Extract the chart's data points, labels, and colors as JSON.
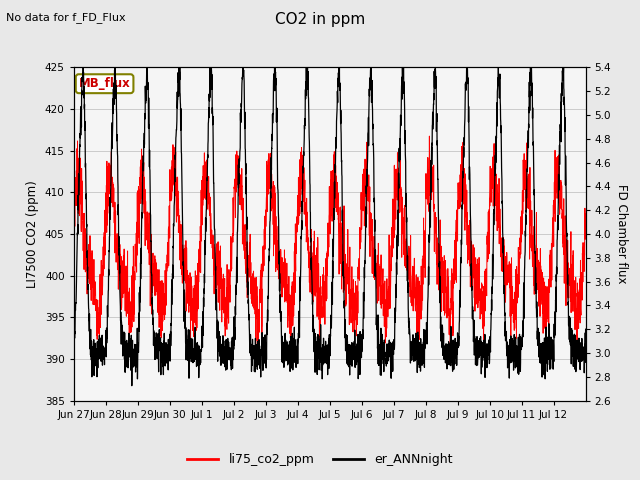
{
  "title": "CO2 in ppm",
  "subtitle": "No data for f_FD_Flux",
  "ylabel_left": "LI7500 CO2 (ppm)",
  "ylabel_right": "FD Chamber flux",
  "ylim_left": [
    385,
    425
  ],
  "ylim_right": [
    2.6,
    5.4
  ],
  "yticks_left": [
    385,
    390,
    395,
    400,
    405,
    410,
    415,
    420,
    425
  ],
  "yticks_right": [
    2.6,
    2.8,
    3.0,
    3.2,
    3.4,
    3.6,
    3.8,
    4.0,
    4.2,
    4.4,
    4.6,
    4.8,
    5.0,
    5.2,
    5.4
  ],
  "xtick_labels": [
    "Jun 27",
    "Jun 28",
    "Jun 29",
    "Jun 30",
    "Jul 1",
    "Jul 2",
    "Jul 3",
    "Jul 4",
    "Jul 5",
    "Jul 6",
    "Jul 7",
    "Jul 8",
    "Jul 9",
    "Jul 10",
    "Jul 11",
    "Jul 12"
  ],
  "legend_label_red": "li75_co2_ppm",
  "legend_label_black": "er_ANNnight",
  "legend_box_label": "MB_flux",
  "bg_color": "#e8e8e8",
  "plot_bg_color": "#f5f5f5",
  "line_color_red": "#ff0000",
  "line_color_black": "#000000"
}
